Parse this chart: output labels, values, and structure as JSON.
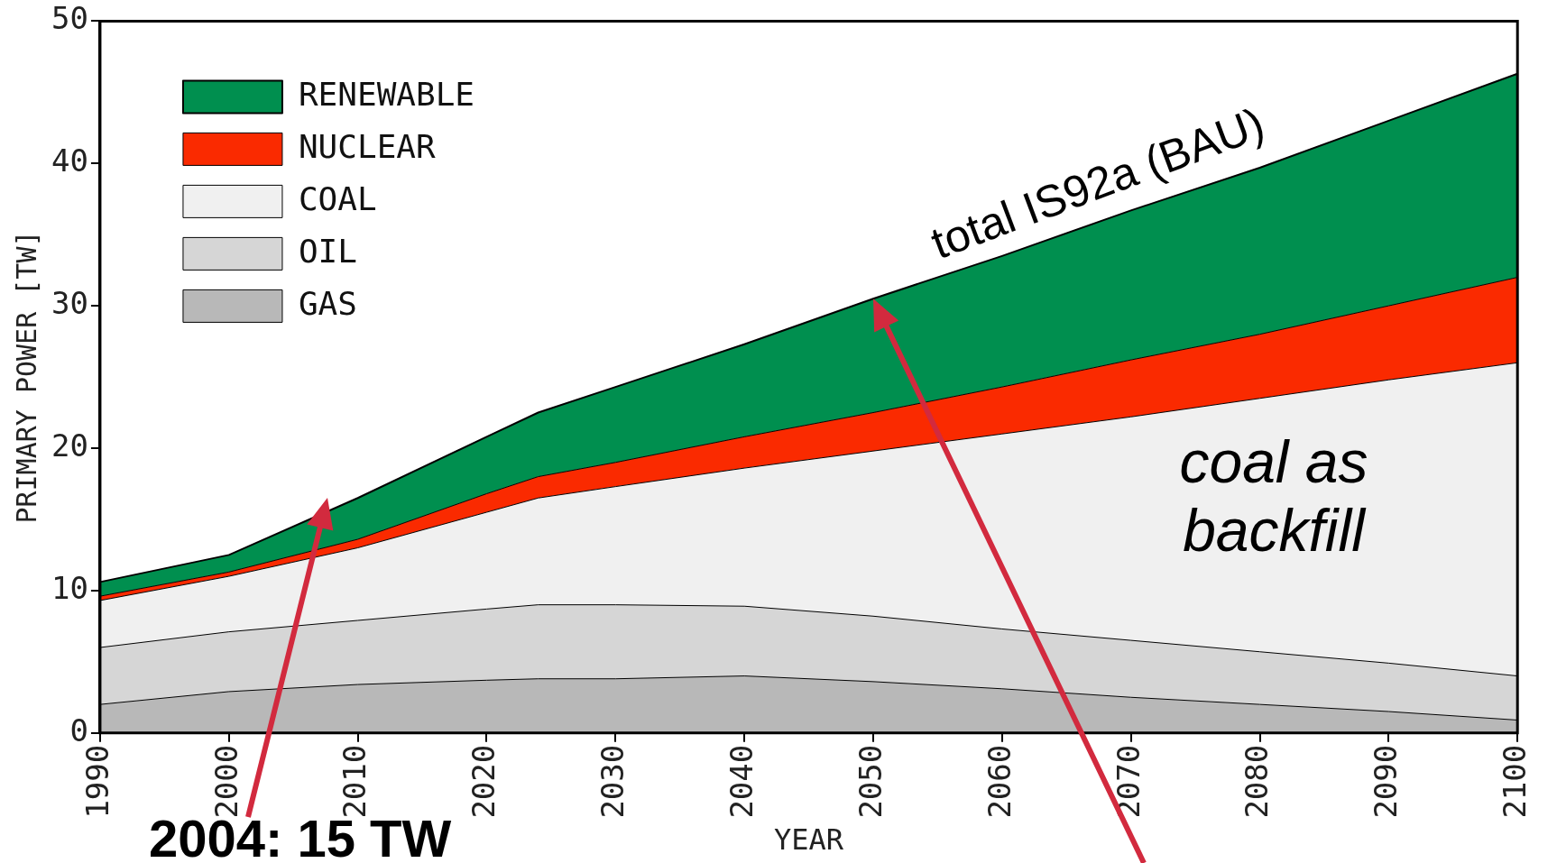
{
  "chart_data": {
    "type": "area",
    "stacked": true,
    "xlabel": "YEAR",
    "ylabel": "PRIMARY POWER [TW]",
    "x": [
      1990,
      2000,
      2010,
      2020,
      2024,
      2030,
      2040,
      2050,
      2060,
      2070,
      2080,
      2090,
      2100
    ],
    "series": [
      {
        "name": "GAS",
        "color": "#b8b8b8",
        "values": [
          2.0,
          2.9,
          3.4,
          3.7,
          3.8,
          3.8,
          4.0,
          3.6,
          3.1,
          2.5,
          2.0,
          1.5,
          0.9
        ]
      },
      {
        "name": "OIL",
        "color": "#d6d6d6",
        "values": [
          4.0,
          4.2,
          4.5,
          5.0,
          5.2,
          5.2,
          4.9,
          4.6,
          4.2,
          4.0,
          3.7,
          3.4,
          3.1
        ]
      },
      {
        "name": "COAL",
        "color": "#f0f0f0",
        "values": [
          3.3,
          3.9,
          5.1,
          6.8,
          7.5,
          8.3,
          9.7,
          11.6,
          13.7,
          15.7,
          17.8,
          19.9,
          22.0
        ]
      },
      {
        "name": "NUCLEAR",
        "color": "#fa2a00",
        "values": [
          0.3,
          0.3,
          0.6,
          1.3,
          1.5,
          1.7,
          2.2,
          2.7,
          3.3,
          4.0,
          4.5,
          5.2,
          6.0
        ]
      },
      {
        "name": "RENEWABLE",
        "color": "#008f4f",
        "values": [
          1.0,
          1.2,
          2.9,
          4.0,
          4.5,
          5.3,
          6.5,
          8.0,
          9.2,
          10.5,
          11.7,
          13.0,
          14.3
        ]
      }
    ],
    "xlim": [
      1990,
      2100
    ],
    "xticks": [
      1990,
      2000,
      2010,
      2020,
      2030,
      2040,
      2050,
      2060,
      2070,
      2080,
      2090,
      2100
    ],
    "ylim": [
      0,
      50
    ],
    "yticks": [
      0,
      10,
      20,
      30,
      40,
      50
    ],
    "grid": false,
    "legend": "top left",
    "annotations": [
      {
        "text": "total IS92a (BAU)",
        "x": 2050,
        "y": 30.5
      },
      "coal as backfill",
      "2004: 15 TW"
    ]
  }
}
